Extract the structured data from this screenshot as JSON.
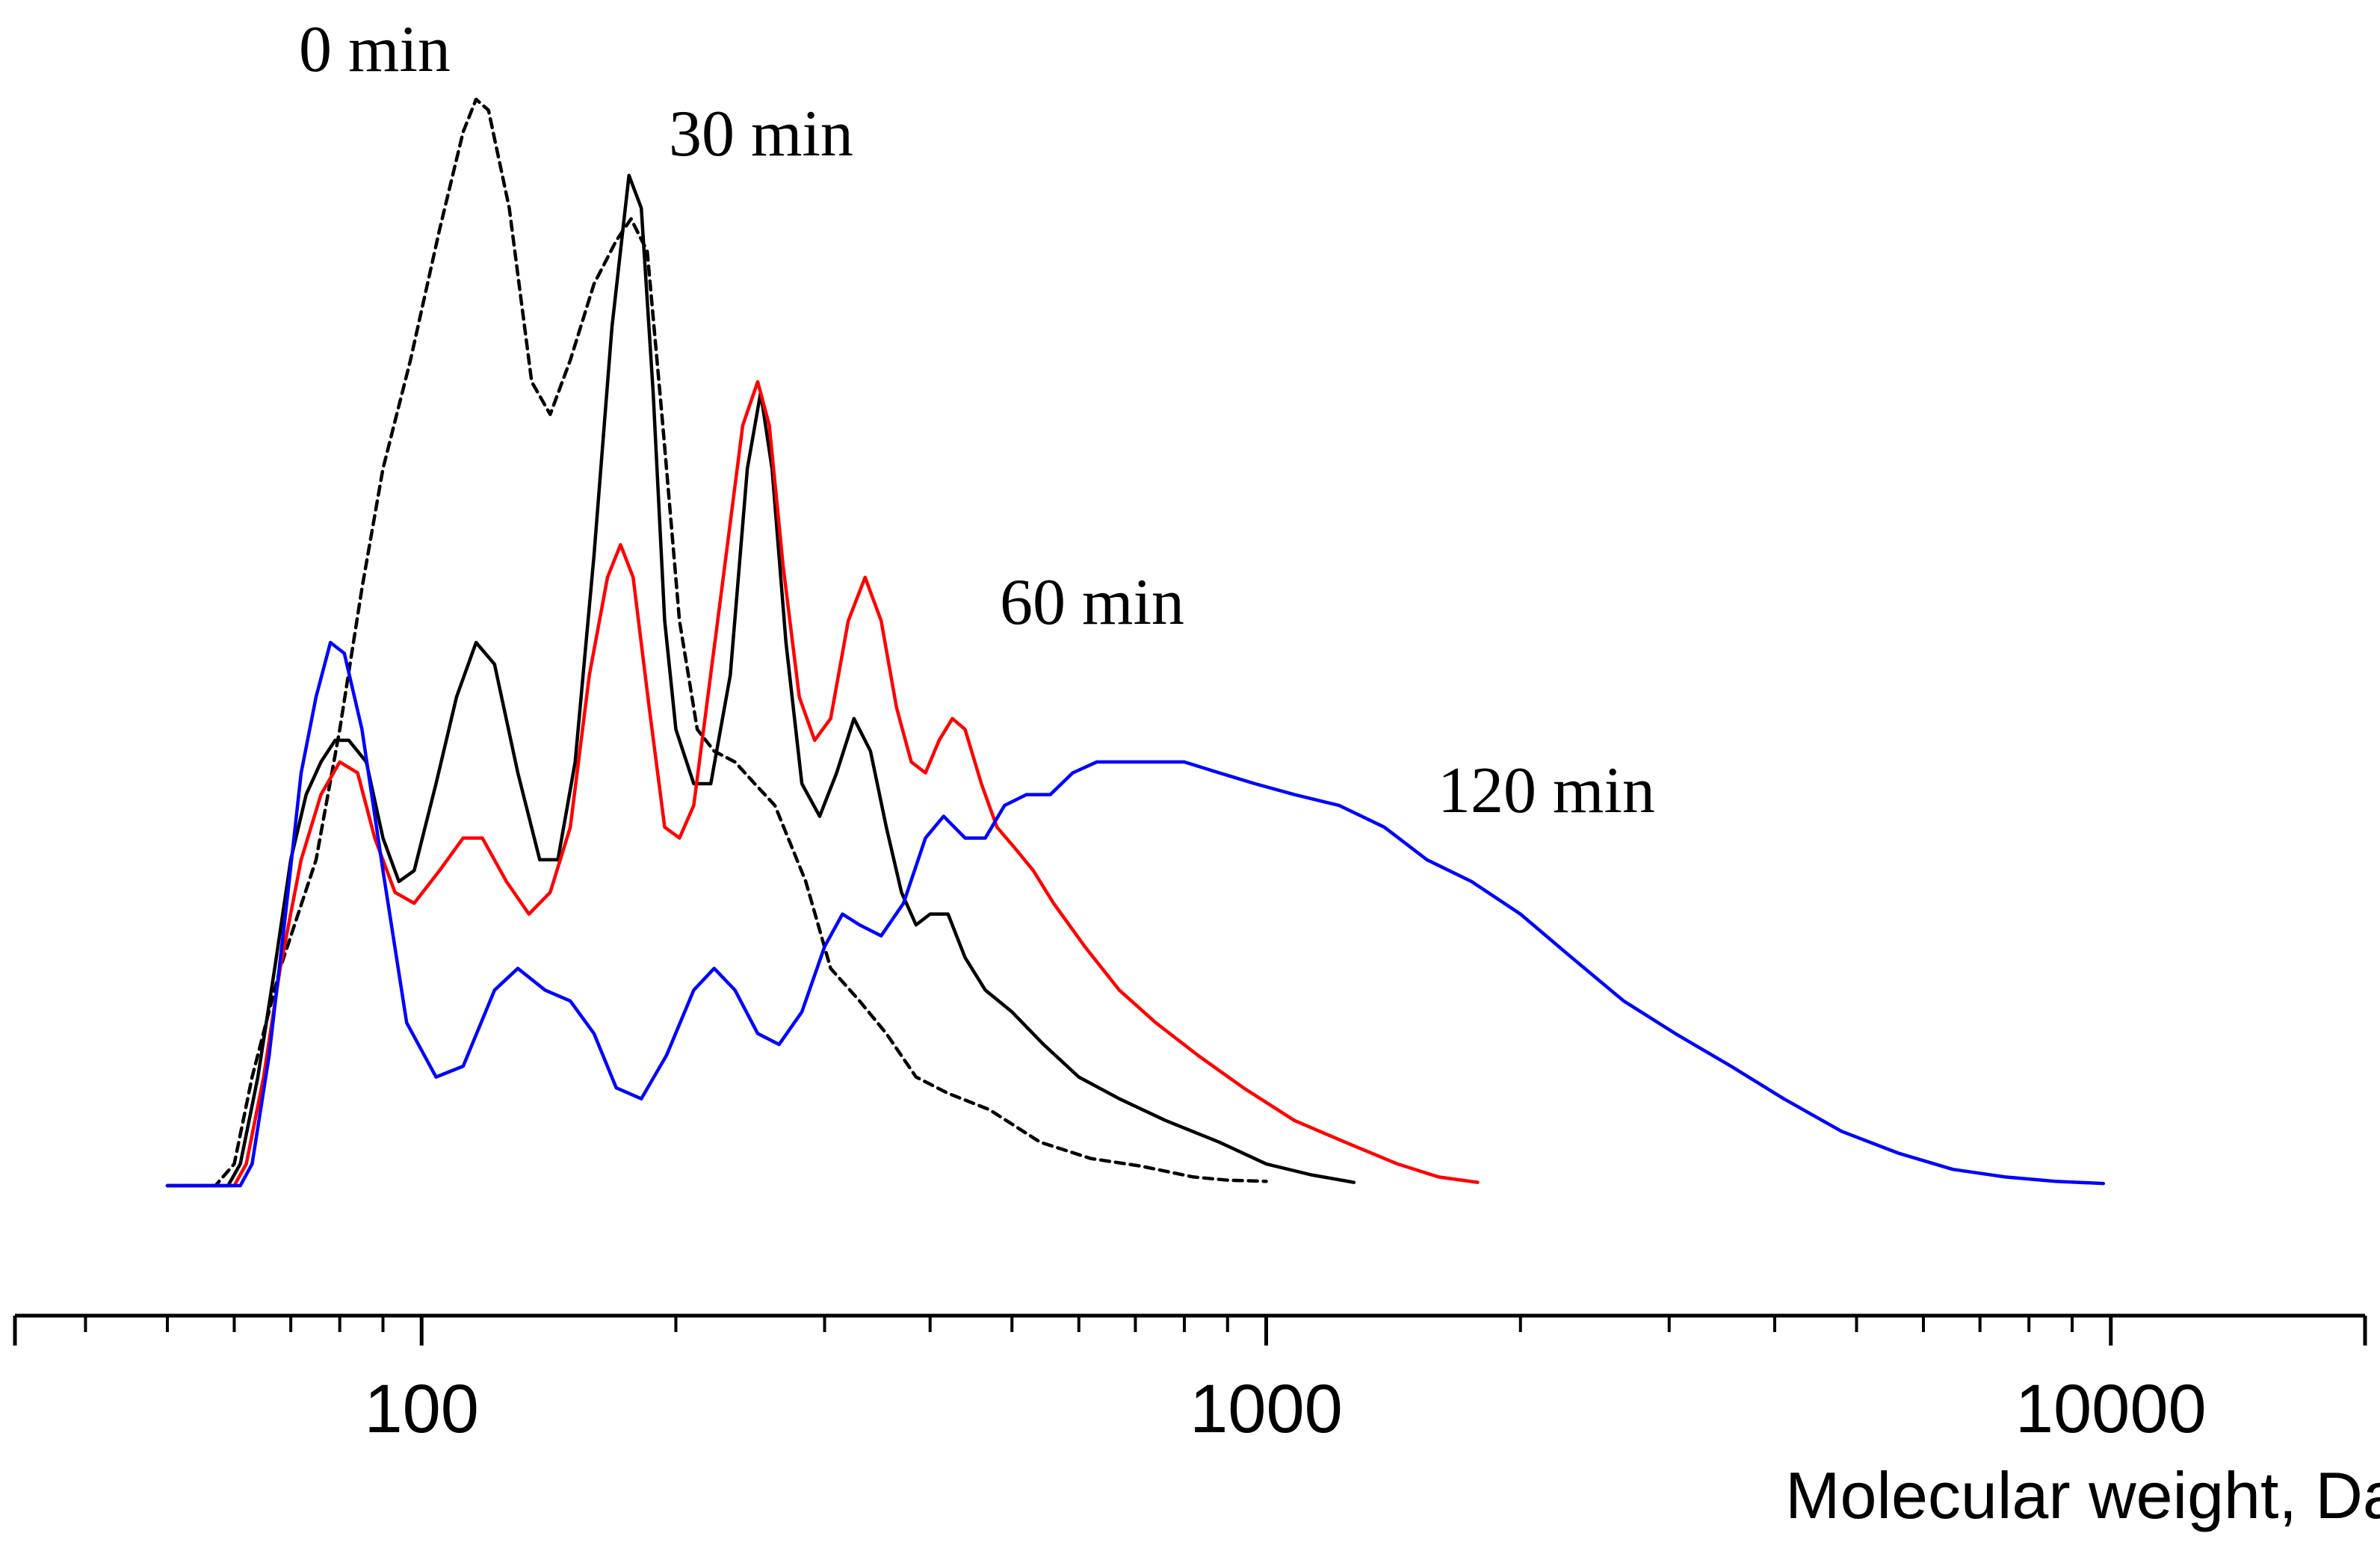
{
  "chart_data": {
    "type": "line",
    "title": "",
    "xlabel": "Molecular weight, Da",
    "ylabel": "",
    "xscale": "log",
    "xlim": [
      33,
      20000
    ],
    "ylim": [
      0,
      1.0
    ],
    "grid": false,
    "legend": "none",
    "x_tick_labels": [
      "100",
      "1000",
      "10000"
    ],
    "series": [
      {
        "name": "0 min",
        "color": "#000000",
        "dash": true,
        "points": [
          [
            50,
            0
          ],
          [
            57,
            0
          ],
          [
            60,
            0.02
          ],
          [
            63,
            0.1
          ],
          [
            68,
            0.2
          ],
          [
            75,
            0.3
          ],
          [
            80,
            0.42
          ],
          [
            85,
            0.55
          ],
          [
            90,
            0.66
          ],
          [
            97,
            0.76
          ],
          [
            105,
            0.88
          ],
          [
            112,
            0.97
          ],
          [
            116,
            1.0
          ],
          [
            120,
            0.99
          ],
          [
            127,
            0.9
          ],
          [
            135,
            0.74
          ],
          [
            142,
            0.71
          ],
          [
            150,
            0.76
          ],
          [
            160,
            0.83
          ],
          [
            170,
            0.87
          ],
          [
            177,
            0.89
          ],
          [
            185,
            0.86
          ],
          [
            193,
            0.7
          ],
          [
            202,
            0.52
          ],
          [
            212,
            0.42
          ],
          [
            222,
            0.4
          ],
          [
            235,
            0.39
          ],
          [
            248,
            0.37
          ],
          [
            262,
            0.35
          ],
          [
            285,
            0.28
          ],
          [
            305,
            0.2
          ],
          [
            330,
            0.17
          ],
          [
            355,
            0.14
          ],
          [
            385,
            0.1
          ],
          [
            420,
            0.085
          ],
          [
            470,
            0.07
          ],
          [
            540,
            0.04
          ],
          [
            620,
            0.025
          ],
          [
            710,
            0.018
          ],
          [
            820,
            0.008
          ],
          [
            900,
            0.005
          ],
          [
            1000,
            0.004
          ]
        ]
      },
      {
        "name": "30 min",
        "color": "#000000",
        "dash": false,
        "points": [
          [
            50,
            0
          ],
          [
            59,
            0
          ],
          [
            61,
            0.02
          ],
          [
            64,
            0.1
          ],
          [
            67,
            0.2
          ],
          [
            70,
            0.3
          ],
          [
            73,
            0.36
          ],
          [
            76,
            0.39
          ],
          [
            79,
            0.41
          ],
          [
            82,
            0.41
          ],
          [
            86,
            0.39
          ],
          [
            90,
            0.32
          ],
          [
            94,
            0.28
          ],
          [
            98,
            0.29
          ],
          [
            104,
            0.37
          ],
          [
            110,
            0.45
          ],
          [
            116,
            0.5
          ],
          [
            122,
            0.48
          ],
          [
            130,
            0.38
          ],
          [
            138,
            0.3
          ],
          [
            145,
            0.3
          ],
          [
            152,
            0.39
          ],
          [
            160,
            0.58
          ],
          [
            168,
            0.79
          ],
          [
            176,
            0.93
          ],
          [
            182,
            0.9
          ],
          [
            188,
            0.73
          ],
          [
            194,
            0.52
          ],
          [
            200,
            0.42
          ],
          [
            210,
            0.37
          ],
          [
            220,
            0.37
          ],
          [
            232,
            0.47
          ],
          [
            243,
            0.66
          ],
          [
            252,
            0.73
          ],
          [
            260,
            0.66
          ],
          [
            270,
            0.5
          ],
          [
            282,
            0.37
          ],
          [
            296,
            0.34
          ],
          [
            310,
            0.38
          ],
          [
            325,
            0.43
          ],
          [
            340,
            0.4
          ],
          [
            355,
            0.33
          ],
          [
            370,
            0.27
          ],
          [
            385,
            0.24
          ],
          [
            400,
            0.25
          ],
          [
            420,
            0.25
          ],
          [
            440,
            0.21
          ],
          [
            465,
            0.18
          ],
          [
            500,
            0.16
          ],
          [
            545,
            0.13
          ],
          [
            600,
            0.1
          ],
          [
            670,
            0.08
          ],
          [
            760,
            0.06
          ],
          [
            880,
            0.04
          ],
          [
            1000,
            0.02
          ],
          [
            1130,
            0.01
          ],
          [
            1270,
            0.003
          ]
        ]
      },
      {
        "name": "60 min",
        "color": "#ff0000",
        "dash": false,
        "points": [
          [
            50,
            0
          ],
          [
            60,
            0
          ],
          [
            62,
            0.02
          ],
          [
            65,
            0.1
          ],
          [
            68,
            0.2
          ],
          [
            72,
            0.3
          ],
          [
            76,
            0.36
          ],
          [
            80,
            0.39
          ],
          [
            84,
            0.38
          ],
          [
            88,
            0.32
          ],
          [
            93,
            0.27
          ],
          [
            98,
            0.26
          ],
          [
            105,
            0.29
          ],
          [
            112,
            0.32
          ],
          [
            118,
            0.32
          ],
          [
            126,
            0.28
          ],
          [
            134,
            0.25
          ],
          [
            142,
            0.27
          ],
          [
            150,
            0.33
          ],
          [
            158,
            0.47
          ],
          [
            166,
            0.56
          ],
          [
            172,
            0.59
          ],
          [
            178,
            0.56
          ],
          [
            186,
            0.44
          ],
          [
            194,
            0.33
          ],
          [
            202,
            0.32
          ],
          [
            210,
            0.35
          ],
          [
            225,
            0.53
          ],
          [
            240,
            0.7
          ],
          [
            250,
            0.74
          ],
          [
            258,
            0.7
          ],
          [
            268,
            0.57
          ],
          [
            280,
            0.45
          ],
          [
            292,
            0.41
          ],
          [
            305,
            0.43
          ],
          [
            320,
            0.52
          ],
          [
            335,
            0.56
          ],
          [
            350,
            0.52
          ],
          [
            365,
            0.44
          ],
          [
            380,
            0.39
          ],
          [
            395,
            0.38
          ],
          [
            410,
            0.41
          ],
          [
            425,
            0.43
          ],
          [
            440,
            0.42
          ],
          [
            460,
            0.37
          ],
          [
            480,
            0.33
          ],
          [
            505,
            0.31
          ],
          [
            530,
            0.29
          ],
          [
            560,
            0.26
          ],
          [
            610,
            0.22
          ],
          [
            670,
            0.18
          ],
          [
            740,
            0.15
          ],
          [
            830,
            0.12
          ],
          [
            940,
            0.09
          ],
          [
            1080,
            0.06
          ],
          [
            1240,
            0.04
          ],
          [
            1430,
            0.02
          ],
          [
            1600,
            0.008
          ],
          [
            1780,
            0.003
          ]
        ]
      },
      {
        "name": "120 min",
        "color": "#0000ff",
        "dash": false,
        "points": [
          [
            50,
            0
          ],
          [
            61,
            0
          ],
          [
            63,
            0.02
          ],
          [
            66,
            0.12
          ],
          [
            69,
            0.25
          ],
          [
            72,
            0.38
          ],
          [
            75,
            0.45
          ],
          [
            78,
            0.5
          ],
          [
            81,
            0.49
          ],
          [
            85,
            0.42
          ],
          [
            90,
            0.29
          ],
          [
            96,
            0.15
          ],
          [
            104,
            0.1
          ],
          [
            112,
            0.11
          ],
          [
            122,
            0.18
          ],
          [
            130,
            0.2
          ],
          [
            140,
            0.18
          ],
          [
            150,
            0.17
          ],
          [
            160,
            0.14
          ],
          [
            170,
            0.09
          ],
          [
            182,
            0.08
          ],
          [
            195,
            0.12
          ],
          [
            210,
            0.18
          ],
          [
            222,
            0.2
          ],
          [
            235,
            0.18
          ],
          [
            250,
            0.14
          ],
          [
            265,
            0.13
          ],
          [
            282,
            0.16
          ],
          [
            300,
            0.22
          ],
          [
            315,
            0.25
          ],
          [
            330,
            0.24
          ],
          [
            350,
            0.23
          ],
          [
            372,
            0.26
          ],
          [
            395,
            0.32
          ],
          [
            415,
            0.34
          ],
          [
            440,
            0.32
          ],
          [
            465,
            0.32
          ],
          [
            490,
            0.35
          ],
          [
            520,
            0.36
          ],
          [
            555,
            0.36
          ],
          [
            590,
            0.38
          ],
          [
            630,
            0.39
          ],
          [
            680,
            0.39
          ],
          [
            740,
            0.39
          ],
          [
            800,
            0.39
          ],
          [
            880,
            0.38
          ],
          [
            970,
            0.37
          ],
          [
            1080,
            0.36
          ],
          [
            1220,
            0.35
          ],
          [
            1380,
            0.33
          ],
          [
            1550,
            0.3
          ],
          [
            1750,
            0.28
          ],
          [
            2000,
            0.25
          ],
          [
            2300,
            0.21
          ],
          [
            2650,
            0.17
          ],
          [
            3050,
            0.14
          ],
          [
            3550,
            0.11
          ],
          [
            4100,
            0.08
          ],
          [
            4800,
            0.05
          ],
          [
            5600,
            0.03
          ],
          [
            6500,
            0.015
          ],
          [
            7500,
            0.008
          ],
          [
            8600,
            0.004
          ],
          [
            9800,
            0.002
          ]
        ]
      }
    ],
    "annotations": [
      {
        "text": "0 min",
        "series": "0 min"
      },
      {
        "text": "30 min",
        "series": "30 min"
      },
      {
        "text": "60 min",
        "series": "60 min"
      },
      {
        "text": "120 min",
        "series": "120 min"
      }
    ]
  }
}
